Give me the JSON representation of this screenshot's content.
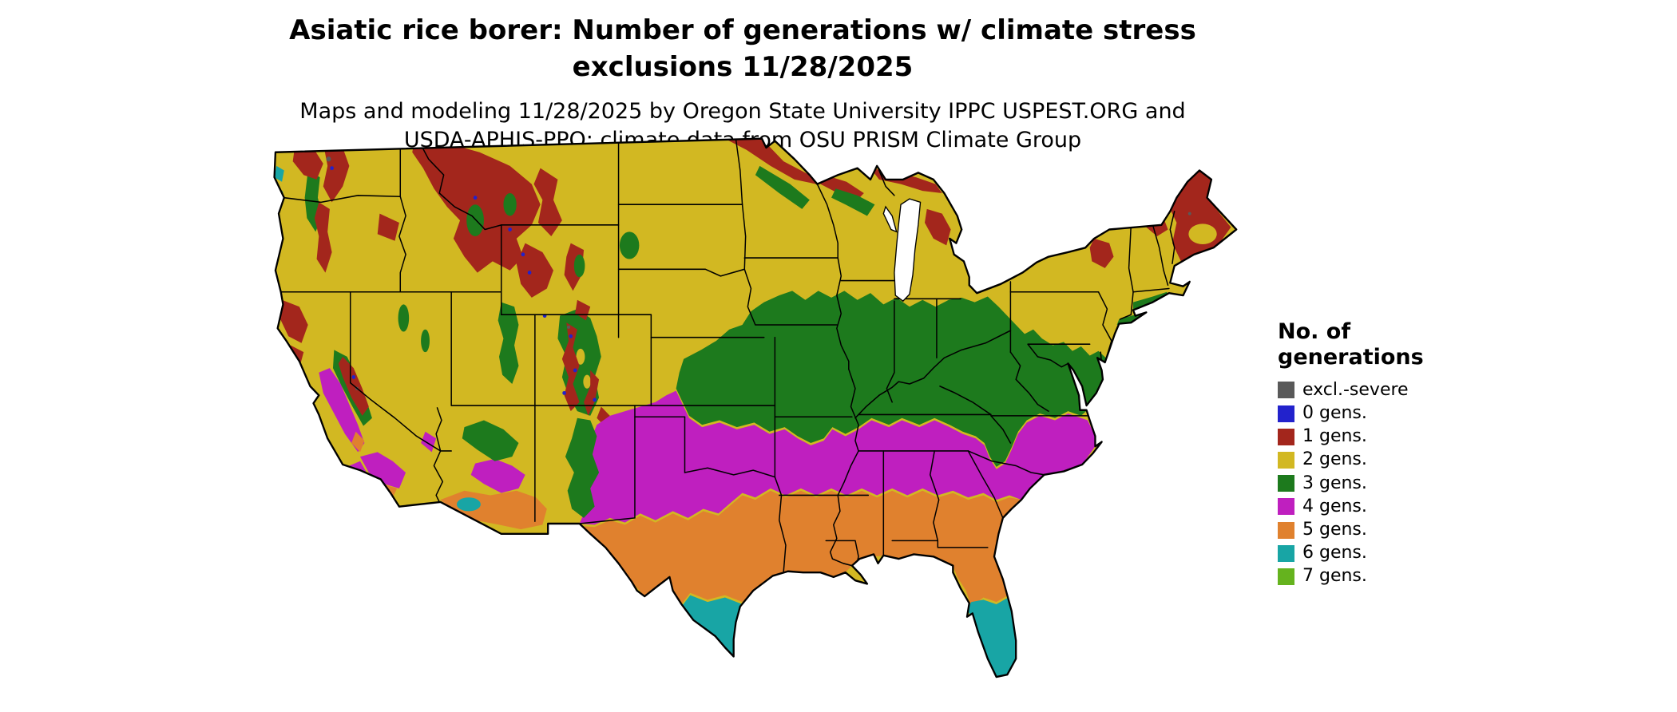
{
  "title": {
    "line1": "Asiatic rice borer: Number of generations w/ climate stress",
    "line2": "exclusions 11/28/2025"
  },
  "subtitle": {
    "line1": "Maps and modeling 11/28/2025 by Oregon State University IPPC USPEST.ORG and",
    "line2": "USDA-APHIS-PPQ; climate data from OSU PRISM Climate Group"
  },
  "legend": {
    "title_line1": "No. of",
    "title_line2": "generations",
    "items": [
      {
        "label": "excl.-severe",
        "color": "#595959"
      },
      {
        "label": "0 gens.",
        "color": "#2222cc"
      },
      {
        "label": "1 gens.",
        "color": "#a3261c"
      },
      {
        "label": "2 gens.",
        "color": "#d2b822"
      },
      {
        "label": "3 gens.",
        "color": "#1d7a1d"
      },
      {
        "label": "4 gens.",
        "color": "#bf1fbf"
      },
      {
        "label": "5 gens.",
        "color": "#e0812e"
      },
      {
        "label": "6 gens.",
        "color": "#18a5a5"
      },
      {
        "label": "7 gens.",
        "color": "#65b31e"
      }
    ]
  },
  "map": {
    "region": "Contiguous United States"
  }
}
